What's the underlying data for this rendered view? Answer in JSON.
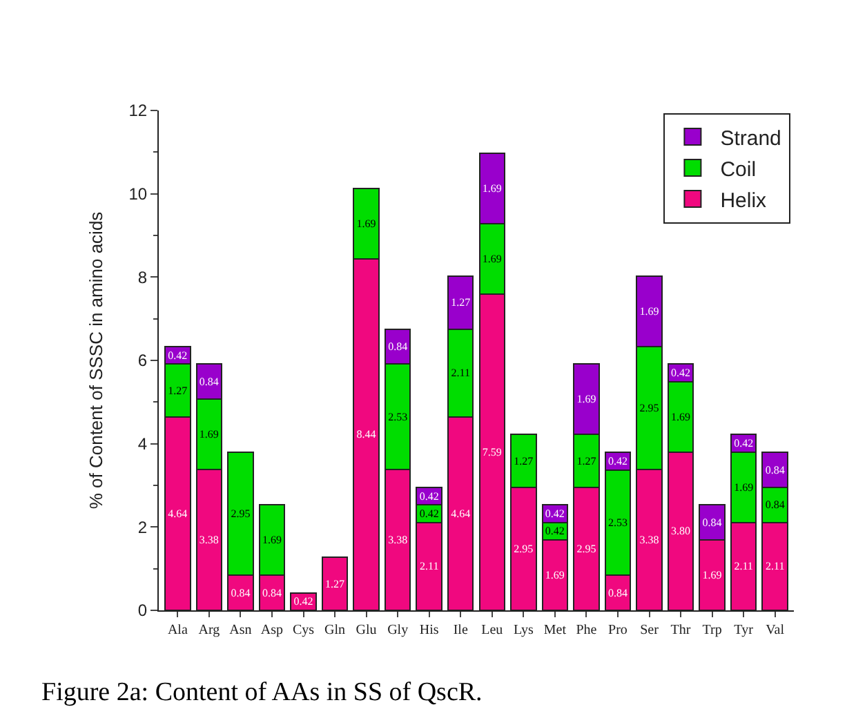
{
  "chart_data": {
    "type": "bar",
    "stacked": true,
    "ylabel": "% of Content of SSSC in amino acids",
    "categories": [
      "Ala",
      "Arg",
      "Asn",
      "Asp",
      "Cys",
      "Gln",
      "Glu",
      "Gly",
      "His",
      "Ile",
      "Leu",
      "Lys",
      "Met",
      "Phe",
      "Pro",
      "Ser",
      "Thr",
      "Trp",
      "Tyr",
      "Val"
    ],
    "series": [
      {
        "name": "Helix",
        "color": "#f0087f",
        "values": [
          4.64,
          3.38,
          0.84,
          0.84,
          0.42,
          1.27,
          8.44,
          3.38,
          2.11,
          4.64,
          7.59,
          2.95,
          1.69,
          2.95,
          0.84,
          3.38,
          3.8,
          1.69,
          2.11,
          2.11
        ],
        "value_labels": [
          "4.64",
          "3.38",
          "0.84",
          "0.84",
          "0.42",
          "1.27",
          "8.44",
          "3.38",
          "2.11",
          "4.64",
          "7.59",
          "2.95",
          "1.69",
          "2.95",
          "0.84",
          "3.38",
          "3.80",
          "1.69",
          "2.11",
          "2.11"
        ]
      },
      {
        "name": "Coil",
        "color": "#00dd00",
        "values": [
          1.27,
          1.69,
          2.95,
          1.69,
          0,
          0,
          1.69,
          2.53,
          0.42,
          2.11,
          1.69,
          1.27,
          0.42,
          1.27,
          2.53,
          2.95,
          1.69,
          0,
          1.69,
          0.84
        ],
        "value_labels": [
          "1.27",
          "1.69",
          "2.95",
          "1.69",
          null,
          null,
          "1.69",
          "2.53",
          "0.42",
          "2.11",
          "1.69",
          "1.27",
          "0.42",
          "1.27",
          "2.53",
          "2.95",
          "1.69",
          null,
          "1.69",
          "0.84"
        ]
      },
      {
        "name": "Strand",
        "color": "#9900cc",
        "values": [
          0.42,
          0.84,
          0,
          0,
          0,
          0,
          0,
          0.84,
          0.42,
          1.27,
          1.69,
          0,
          0.42,
          1.69,
          0.42,
          1.69,
          0.42,
          0.84,
          0.42,
          0.84
        ],
        "value_labels": [
          "0.42",
          "0.84",
          null,
          null,
          null,
          null,
          null,
          "0.84",
          "0.42",
          "1.27",
          "1.69",
          null,
          "0.42",
          "1.69",
          "0.42",
          "1.69",
          "0.42",
          "0.84",
          "0.42",
          "0.84"
        ]
      }
    ],
    "ylim": [
      0,
      12
    ],
    "yticks": [
      0,
      2,
      4,
      6,
      8,
      10,
      12
    ],
    "legend": "top right",
    "annotations": [
      "Figure 2a: Content of AAs in SS of QscR."
    ]
  }
}
